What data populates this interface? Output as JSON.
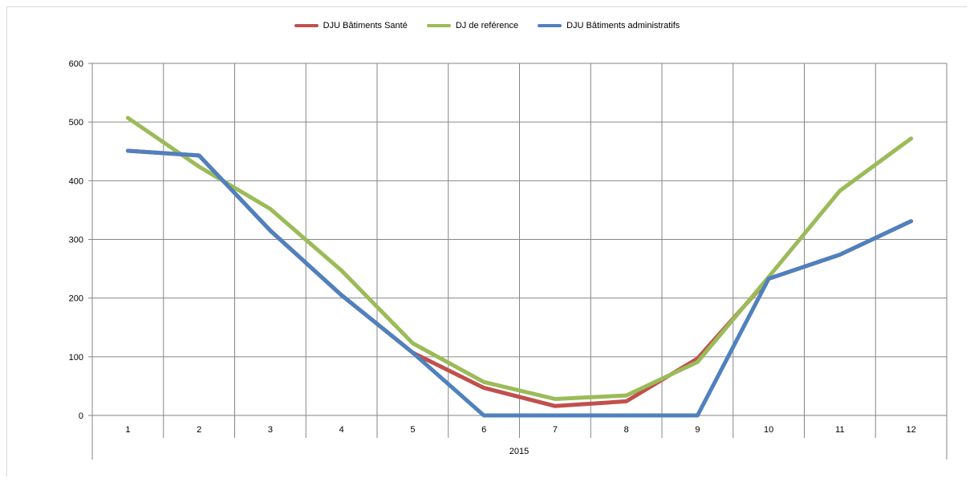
{
  "chart_data": {
    "type": "line",
    "title": "",
    "xlabel": "2015",
    "ylabel": "",
    "categories": [
      "1",
      "2",
      "3",
      "4",
      "5",
      "6",
      "7",
      "8",
      "9",
      "10",
      "11",
      "12"
    ],
    "ylim": [
      0,
      600
    ],
    "yticks": [
      "0",
      "100",
      "200",
      "300",
      "400",
      "500",
      "600"
    ],
    "grid": true,
    "legend_position": "top-center",
    "series": [
      {
        "name": "DJU Bâtiments Santé",
        "color": "#c0504d",
        "values": [
          451,
          443,
          315,
          205,
          107,
          47,
          16,
          24,
          97,
          233,
          274,
          331
        ]
      },
      {
        "name": "DJ de reférence",
        "color": "#9bbb59",
        "values": [
          507,
          424,
          352,
          247,
          123,
          57,
          28,
          34,
          91,
          236,
          383,
          472
        ]
      },
      {
        "name": "DJU Bâtiments administratifs",
        "color": "#4f81bd",
        "values": [
          451,
          443,
          315,
          205,
          107,
          0,
          0,
          0,
          0,
          233,
          274,
          331
        ]
      }
    ]
  }
}
